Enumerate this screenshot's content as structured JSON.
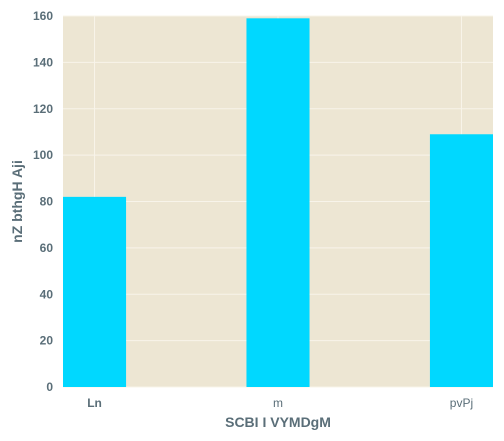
{
  "chart_data": {
    "type": "bar",
    "categories": [
      "Ln",
      "m",
      "pvPj"
    ],
    "values": [
      82,
      159,
      109
    ],
    "xlabel": "SCBI I VYMDgM",
    "ylabel": "nZ bthgH Aji",
    "ylim": [
      0,
      160
    ],
    "yticks": [
      0,
      20,
      40,
      60,
      80,
      100,
      120,
      140,
      160
    ],
    "grid": true,
    "colors": {
      "bar": "#00d8ff",
      "plot_background": "#ede6d3",
      "grid": "#f8f4ea",
      "text": "#5a6e78"
    }
  }
}
